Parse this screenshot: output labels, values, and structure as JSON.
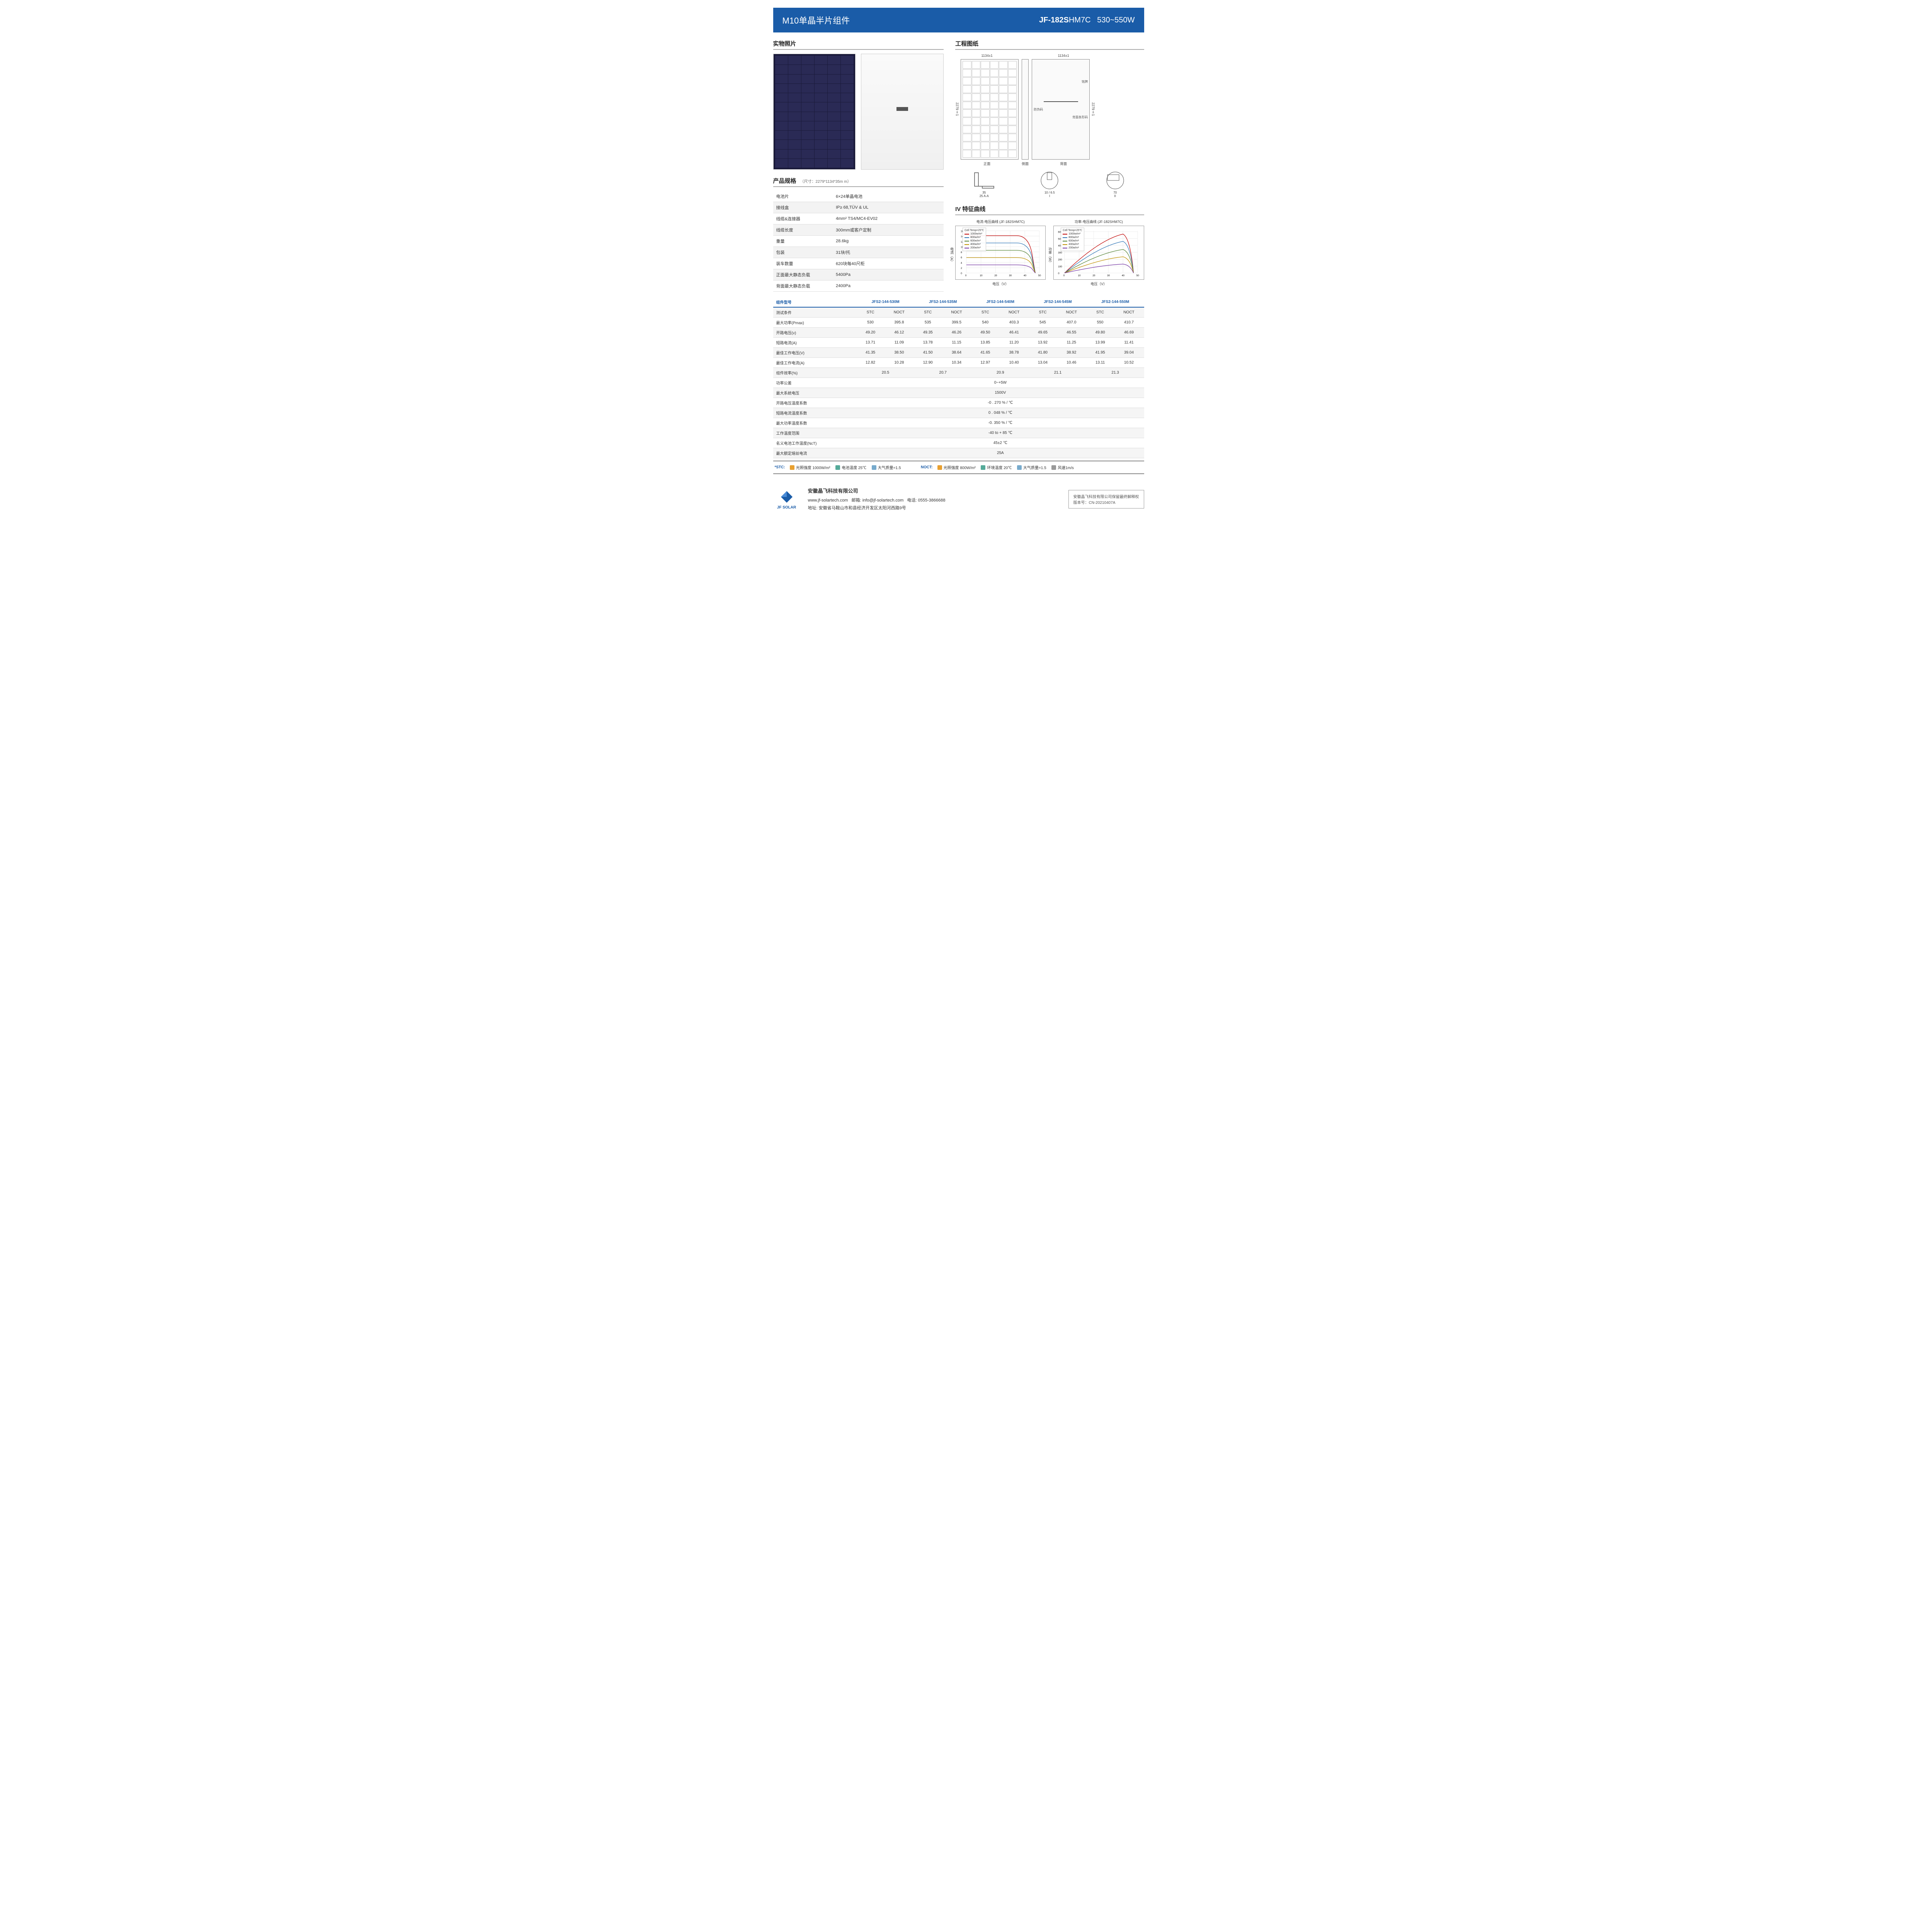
{
  "header": {
    "left": "M10单晶半片组件",
    "model_prefix": "JF-182S",
    "model_suffix": "HM7C",
    "wattage": "530~550W"
  },
  "sections": {
    "photos": "实物照片",
    "drawing": "工程图纸",
    "specs": "产品规格",
    "iv": "IV 特征曲线"
  },
  "spec_note": "（尺寸：2279*1134*35m m）",
  "specs": [
    [
      "电池片",
      "6×24单晶电池"
    ],
    [
      "接线盒",
      "IP≥ 68,TÜV & UL"
    ],
    [
      "线缆&连接器",
      "4mm² TS4/MC4-EV02"
    ],
    [
      "线缆长度",
      "300mm或客户定制"
    ],
    [
      "重量",
      "28.6kg"
    ],
    [
      "包装",
      "31块/托"
    ],
    [
      "装车数量",
      "620块每40尺柜"
    ],
    [
      "正面最大静态负载",
      "5400Pa"
    ],
    [
      "背面最大静态负载",
      "2400Pa"
    ]
  ],
  "drawing": {
    "dim_w": "1134±1",
    "dim_h": "2279±1",
    "front_lbl": "正面",
    "side_lbl": "侧面",
    "back_lbl": "背面",
    "nameplate": "铭牌",
    "anticounterfeit": "防伪码",
    "barcode": "背面条形码",
    "prof_aa": "25\nA-A",
    "prof_35": "35",
    "prof_10": "10",
    "prof_65": "6.5",
    "prof_70": "70",
    "roman1": "I",
    "roman2": "II"
  },
  "iv": {
    "chart1_title": "电流-电压曲线 (JF-182SHM7C)",
    "chart2_title": "功率-电压曲线 (JF-182SHM7C)",
    "xlabel": "电压（V）",
    "ylabel1": "电流（A）",
    "ylabel2": "功率（W）",
    "cell_temp": "Cell Temp=25℃",
    "legend_items": [
      "1000w/m²",
      "800w/m²",
      "600w/m²",
      "400w/m²",
      "200w/m²"
    ],
    "legend_colors": [
      "#c00000",
      "#2e75b6",
      "#548235",
      "#bf9000",
      "#7030a0"
    ],
    "chart1": {
      "ymax": 16,
      "ystep": 2,
      "xmax": 50,
      "xstep": 10
    },
    "chart2": {
      "ymax": 600,
      "ystep": 100,
      "xmax": 50,
      "xstep": 10
    }
  },
  "model_header": "组件型号",
  "models": [
    "JFS2-144-530M",
    "JFS2-144-535M",
    "JFS2-144-540M",
    "JFS2-144-545M",
    "JFS2-144-550M"
  ],
  "test_cond": "测试条件",
  "stc": "STC",
  "noct": "NOCT",
  "param_rows": [
    {
      "lbl": "最大功率(Pmax)",
      "v": [
        [
          "530",
          "395.8"
        ],
        [
          "535",
          "399.5"
        ],
        [
          "540",
          "403.3"
        ],
        [
          "545",
          "407.0"
        ],
        [
          "550",
          "410.7"
        ]
      ]
    },
    {
      "lbl": "开路电压(v)",
      "v": [
        [
          "49.20",
          "46.12"
        ],
        [
          "49.35",
          "46.26"
        ],
        [
          "49.50",
          "46.41"
        ],
        [
          "49.65",
          "46.55"
        ],
        [
          "49.80",
          "46.69"
        ]
      ]
    },
    {
      "lbl": "短路电流(A)",
      "v": [
        [
          "13.71",
          "11.09"
        ],
        [
          "13.78",
          "11.15"
        ],
        [
          "13.85",
          "11.20"
        ],
        [
          "13.92",
          "11.25"
        ],
        [
          "13.99",
          "11.41"
        ]
      ]
    },
    {
      "lbl": "最佳工作电压(V)",
      "v": [
        [
          "41.35",
          "38.50"
        ],
        [
          "41.50",
          "38.64"
        ],
        [
          "41.65",
          "38.78"
        ],
        [
          "41.80",
          "38.92"
        ],
        [
          "41.95",
          "39.04"
        ]
      ]
    },
    {
      "lbl": "最佳工作电流(A)",
      "v": [
        [
          "12.82",
          "10.28"
        ],
        [
          "12.90",
          "10.34"
        ],
        [
          "12.97",
          "10.40"
        ],
        [
          "13.04",
          "10.46"
        ],
        [
          "13.11",
          "10.52"
        ]
      ]
    }
  ],
  "eff_row": {
    "lbl": "组件效率(%)",
    "v": [
      "20.5",
      "20.7",
      "20.9",
      "21.1",
      "21.3"
    ]
  },
  "shared_rows": [
    [
      "功率公差",
      "0~+5W"
    ],
    [
      "最大系统电压",
      "1500V"
    ],
    [
      "开路电压温度系数",
      "-0 . 270 % / ℃"
    ],
    [
      "短路电流温度系数",
      "0 . 048 % / ℃"
    ],
    [
      "最大功率温度系数",
      "-0. 350 % / ℃"
    ],
    [
      "工作温度范围",
      "-40 to + 85 ℃"
    ],
    [
      "名义电池工作温度(NcT)",
      "45±2 ℃"
    ],
    [
      "最大额定熔丝电流",
      "25A"
    ]
  ],
  "conditions": {
    "stc_lbl": "*STC:",
    "stc_items": [
      [
        "光照强度 1000W/m²",
        "ico"
      ],
      [
        "电池温度 25℃",
        "grn"
      ],
      [
        "大气质量=1.5",
        "blu"
      ]
    ],
    "noct_lbl": "NOCT:",
    "noct_items": [
      [
        "光照强度 800W/m²",
        "ico"
      ],
      [
        "环境温度 20℃",
        "grn"
      ],
      [
        "大气质量=1.5",
        "blu"
      ],
      [
        "风速1m/s",
        "gry"
      ]
    ]
  },
  "footer": {
    "company": "安徽晶飞科技有限公司",
    "line1_a": "www.jf-solartech.com",
    "line1_b": "邮箱: info@jf-solartech.com",
    "line1_c": "电话: 0555-3866688",
    "addr": "地址: 安徽省马鞍山市和县经济开发区太阳河西路9号",
    "logo_txt": "JF SOLAR",
    "rights1": "安徽晶飞科技有限公司保留最终解释权",
    "rights2": "版本号：CN-20210407A"
  }
}
